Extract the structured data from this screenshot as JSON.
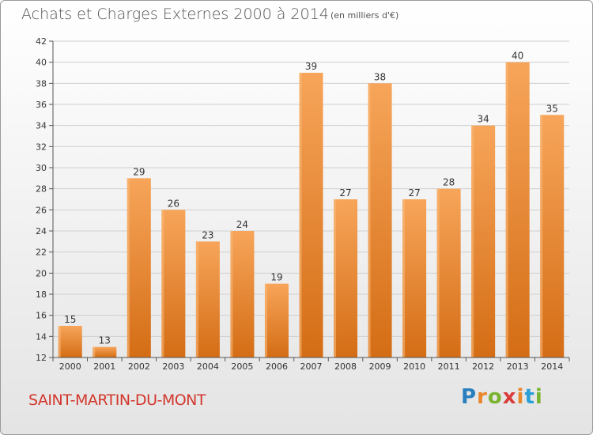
{
  "header": {
    "title": "Achats et Charges Externes 2000 à 2014",
    "subtitle": "(en milliers d'€)"
  },
  "footer": {
    "town": "SAINT-MARTIN-DU-MONT",
    "logo": {
      "letters": [
        "P",
        "r",
        "o",
        "x",
        "i",
        "t",
        "i"
      ],
      "colors": [
        "#2a7fbf",
        "#e9862b",
        "#7ab330",
        "#d93a3a",
        "#e9862b",
        "#2a9fd8",
        "#7ab330"
      ]
    }
  },
  "chart_data": {
    "type": "bar",
    "categories": [
      "2000",
      "2001",
      "2002",
      "2003",
      "2004",
      "2005",
      "2006",
      "2007",
      "2008",
      "2009",
      "2010",
      "2011",
      "2012",
      "2013",
      "2014"
    ],
    "values": [
      15,
      13,
      29,
      26,
      23,
      24,
      19,
      39,
      27,
      38,
      27,
      28,
      34,
      40,
      35
    ],
    "ylim": [
      12,
      42
    ],
    "yticks": [
      12,
      14,
      16,
      18,
      20,
      22,
      24,
      26,
      28,
      30,
      32,
      34,
      36,
      38,
      40,
      42
    ],
    "grid": true,
    "bar_color": "#f0912e"
  }
}
